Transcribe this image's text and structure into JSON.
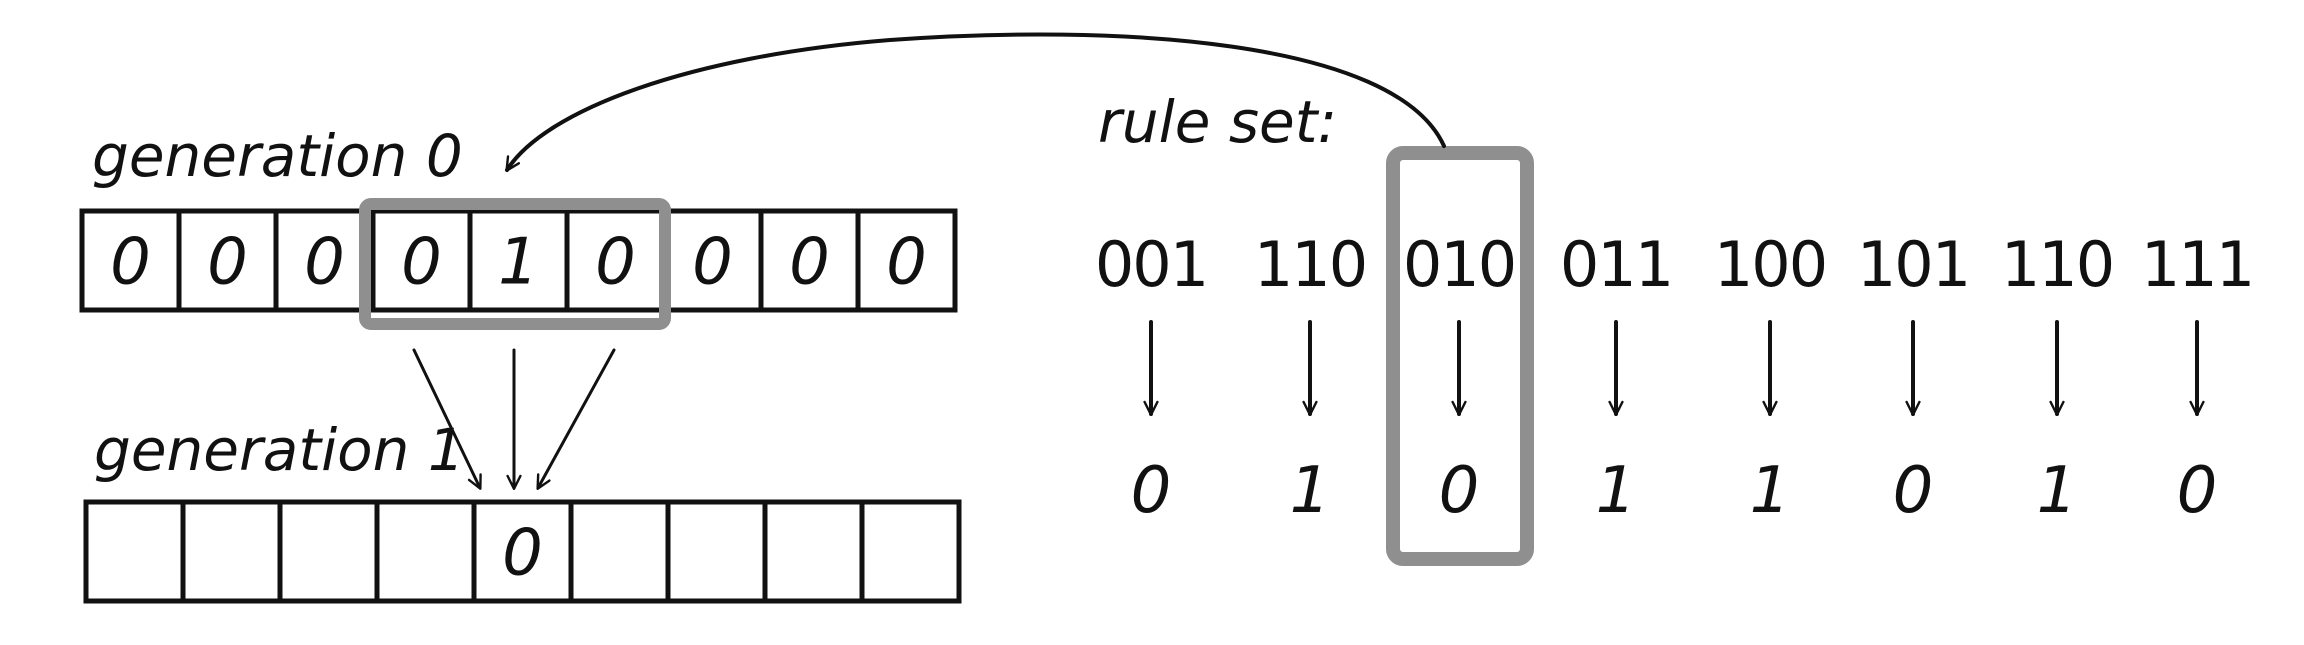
{
  "generation0": {
    "label": "generation 0",
    "cells": [
      "0",
      "0",
      "0",
      "0",
      "1",
      "0",
      "0",
      "0",
      "0"
    ]
  },
  "generation1": {
    "label": "generation 1",
    "cells": [
      "",
      "",
      "",
      "",
      "0",
      "",
      "",
      "",
      ""
    ]
  },
  "ruleset": {
    "label": "rule set:",
    "rules": [
      {
        "pattern": "001",
        "output": "0"
      },
      {
        "pattern": "110",
        "output": "1"
      },
      {
        "pattern": "010",
        "output": "0"
      },
      {
        "pattern": "011",
        "output": "1"
      },
      {
        "pattern": "100",
        "output": "1"
      },
      {
        "pattern": "101",
        "output": "0"
      },
      {
        "pattern": "110",
        "output": "1"
      },
      {
        "pattern": "111",
        "output": "0"
      }
    ]
  }
}
